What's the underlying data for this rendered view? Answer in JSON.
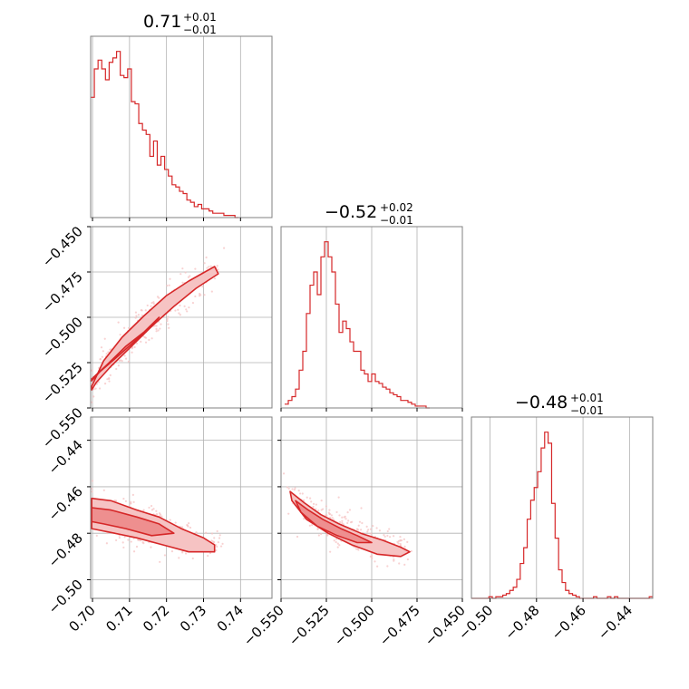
{
  "colors": {
    "series": "#d62728",
    "fill_light": "#f6c3c3",
    "fill_mid": "#ee8f8f",
    "grid": "#b0b0b0",
    "frame": "#808080"
  },
  "chart_data": {
    "type": "corner",
    "parameters": [
      {
        "median": "0.71",
        "plus": "+0.01",
        "minus": "−0.01",
        "range": [
          0.6995,
          0.7485
        ]
      },
      {
        "median": "−0.52",
        "plus": "+0.02",
        "minus": "−0.01",
        "range": [
          -0.55,
          -0.45
        ]
      },
      {
        "median": "−0.48",
        "plus": "+0.01",
        "minus": "−0.01",
        "range": [
          -0.508,
          -0.43
        ]
      }
    ],
    "ticks": {
      "p0": {
        "values": [
          0.7,
          0.71,
          0.72,
          0.73,
          0.74
        ],
        "labels": [
          "0.70",
          "0.71",
          "0.72",
          "0.73",
          "0.74"
        ]
      },
      "p1": {
        "values": [
          -0.55,
          -0.525,
          -0.5,
          -0.475,
          -0.45
        ],
        "labels": [
          "−0.550",
          "−0.525",
          "−0.500",
          "−0.475",
          "−0.450"
        ]
      },
      "p2": {
        "values": [
          -0.5,
          -0.48,
          -0.46,
          -0.44
        ],
        "labels": [
          "−0.50",
          "−0.48",
          "−0.46",
          "−0.44"
        ]
      }
    },
    "hist_p0": {
      "edges_start": 0.6995,
      "bin_width": 0.001,
      "counts": [
        55,
        68,
        72,
        68,
        63,
        71,
        73,
        76,
        65,
        64,
        68,
        53,
        52,
        43,
        40,
        38,
        28,
        35,
        24,
        28,
        22,
        19,
        15,
        14,
        12,
        11,
        8,
        7,
        5,
        6,
        4,
        4,
        3,
        2,
        2,
        2,
        1,
        1,
        1,
        0
      ]
    },
    "hist_p1": {
      "edges_start": -0.548,
      "bin_width": 0.002,
      "counts": [
        2,
        4,
        6,
        10,
        20,
        30,
        50,
        65,
        72,
        60,
        80,
        88,
        80,
        72,
        55,
        40,
        46,
        42,
        35,
        30,
        30,
        20,
        18,
        14,
        18,
        14,
        13,
        11,
        10,
        8,
        7,
        6,
        4,
        4,
        3,
        2,
        1,
        1,
        1,
        0
      ]
    },
    "hist_p2": {
      "edges_start": -0.508,
      "bin_width": 0.0015,
      "counts": [
        0,
        0,
        0,
        0,
        0,
        1,
        0,
        1,
        1,
        2,
        3,
        5,
        7,
        12,
        22,
        32,
        50,
        62,
        70,
        80,
        95,
        105,
        98,
        60,
        38,
        18,
        10,
        5,
        3,
        2,
        1,
        0,
        0,
        0,
        0,
        1,
        0,
        0,
        0,
        1,
        0,
        1,
        0,
        0,
        0,
        0,
        0,
        0,
        0,
        0,
        0,
        1
      ]
    },
    "contours_p1_vs_p0": [
      {
        "level": "outer",
        "points": [
          [
            0.6998,
            -0.538
          ],
          [
            0.703,
            -0.524
          ],
          [
            0.708,
            -0.511
          ],
          [
            0.714,
            -0.499
          ],
          [
            0.72,
            -0.488
          ],
          [
            0.726,
            -0.48
          ],
          [
            0.733,
            -0.472
          ],
          [
            0.734,
            -0.476
          ],
          [
            0.728,
            -0.484
          ],
          [
            0.722,
            -0.494
          ],
          [
            0.716,
            -0.505
          ],
          [
            0.71,
            -0.517
          ],
          [
            0.705,
            -0.527
          ],
          [
            0.701,
            -0.536
          ],
          [
            0.6998,
            -0.54
          ]
        ]
      },
      {
        "level": "inner",
        "points": [
          [
            0.6998,
            -0.534
          ],
          [
            0.704,
            -0.526
          ],
          [
            0.709,
            -0.516
          ],
          [
            0.714,
            -0.508
          ],
          [
            0.718,
            -0.5
          ],
          [
            0.716,
            -0.505
          ],
          [
            0.711,
            -0.514
          ],
          [
            0.706,
            -0.523
          ],
          [
            0.702,
            -0.53
          ],
          [
            0.6998,
            -0.535
          ]
        ]
      }
    ],
    "contours_p2_vs_p0": [
      {
        "level": "outer",
        "points": [
          [
            0.6998,
            -0.465
          ],
          [
            0.705,
            -0.466
          ],
          [
            0.712,
            -0.47
          ],
          [
            0.718,
            -0.473
          ],
          [
            0.724,
            -0.478
          ],
          [
            0.73,
            -0.482
          ],
          [
            0.733,
            -0.485
          ],
          [
            0.733,
            -0.488
          ],
          [
            0.726,
            -0.488
          ],
          [
            0.719,
            -0.485
          ],
          [
            0.712,
            -0.482
          ],
          [
            0.706,
            -0.48
          ],
          [
            0.6998,
            -0.478
          ]
        ]
      },
      {
        "level": "inner",
        "points": [
          [
            0.6998,
            -0.469
          ],
          [
            0.705,
            -0.47
          ],
          [
            0.712,
            -0.473
          ],
          [
            0.718,
            -0.476
          ],
          [
            0.722,
            -0.48
          ],
          [
            0.716,
            -0.481
          ],
          [
            0.709,
            -0.478
          ],
          [
            0.703,
            -0.476
          ],
          [
            0.6998,
            -0.475
          ]
        ]
      }
    ],
    "contours_p2_vs_p1": [
      {
        "level": "outer",
        "points": [
          [
            -0.545,
            -0.462
          ],
          [
            -0.537,
            -0.467
          ],
          [
            -0.528,
            -0.472
          ],
          [
            -0.518,
            -0.476
          ],
          [
            -0.506,
            -0.48
          ],
          [
            -0.494,
            -0.483
          ],
          [
            -0.484,
            -0.486
          ],
          [
            -0.479,
            -0.488
          ],
          [
            -0.484,
            -0.49
          ],
          [
            -0.497,
            -0.489
          ],
          [
            -0.511,
            -0.485
          ],
          [
            -0.524,
            -0.48
          ],
          [
            -0.536,
            -0.474
          ],
          [
            -0.544,
            -0.466
          ]
        ]
      },
      {
        "level": "inner",
        "points": [
          [
            -0.542,
            -0.466
          ],
          [
            -0.535,
            -0.47
          ],
          [
            -0.527,
            -0.474
          ],
          [
            -0.517,
            -0.478
          ],
          [
            -0.508,
            -0.481
          ],
          [
            -0.5,
            -0.484
          ],
          [
            -0.508,
            -0.484
          ],
          [
            -0.519,
            -0.481
          ],
          [
            -0.53,
            -0.477
          ],
          [
            -0.539,
            -0.471
          ]
        ]
      }
    ]
  }
}
